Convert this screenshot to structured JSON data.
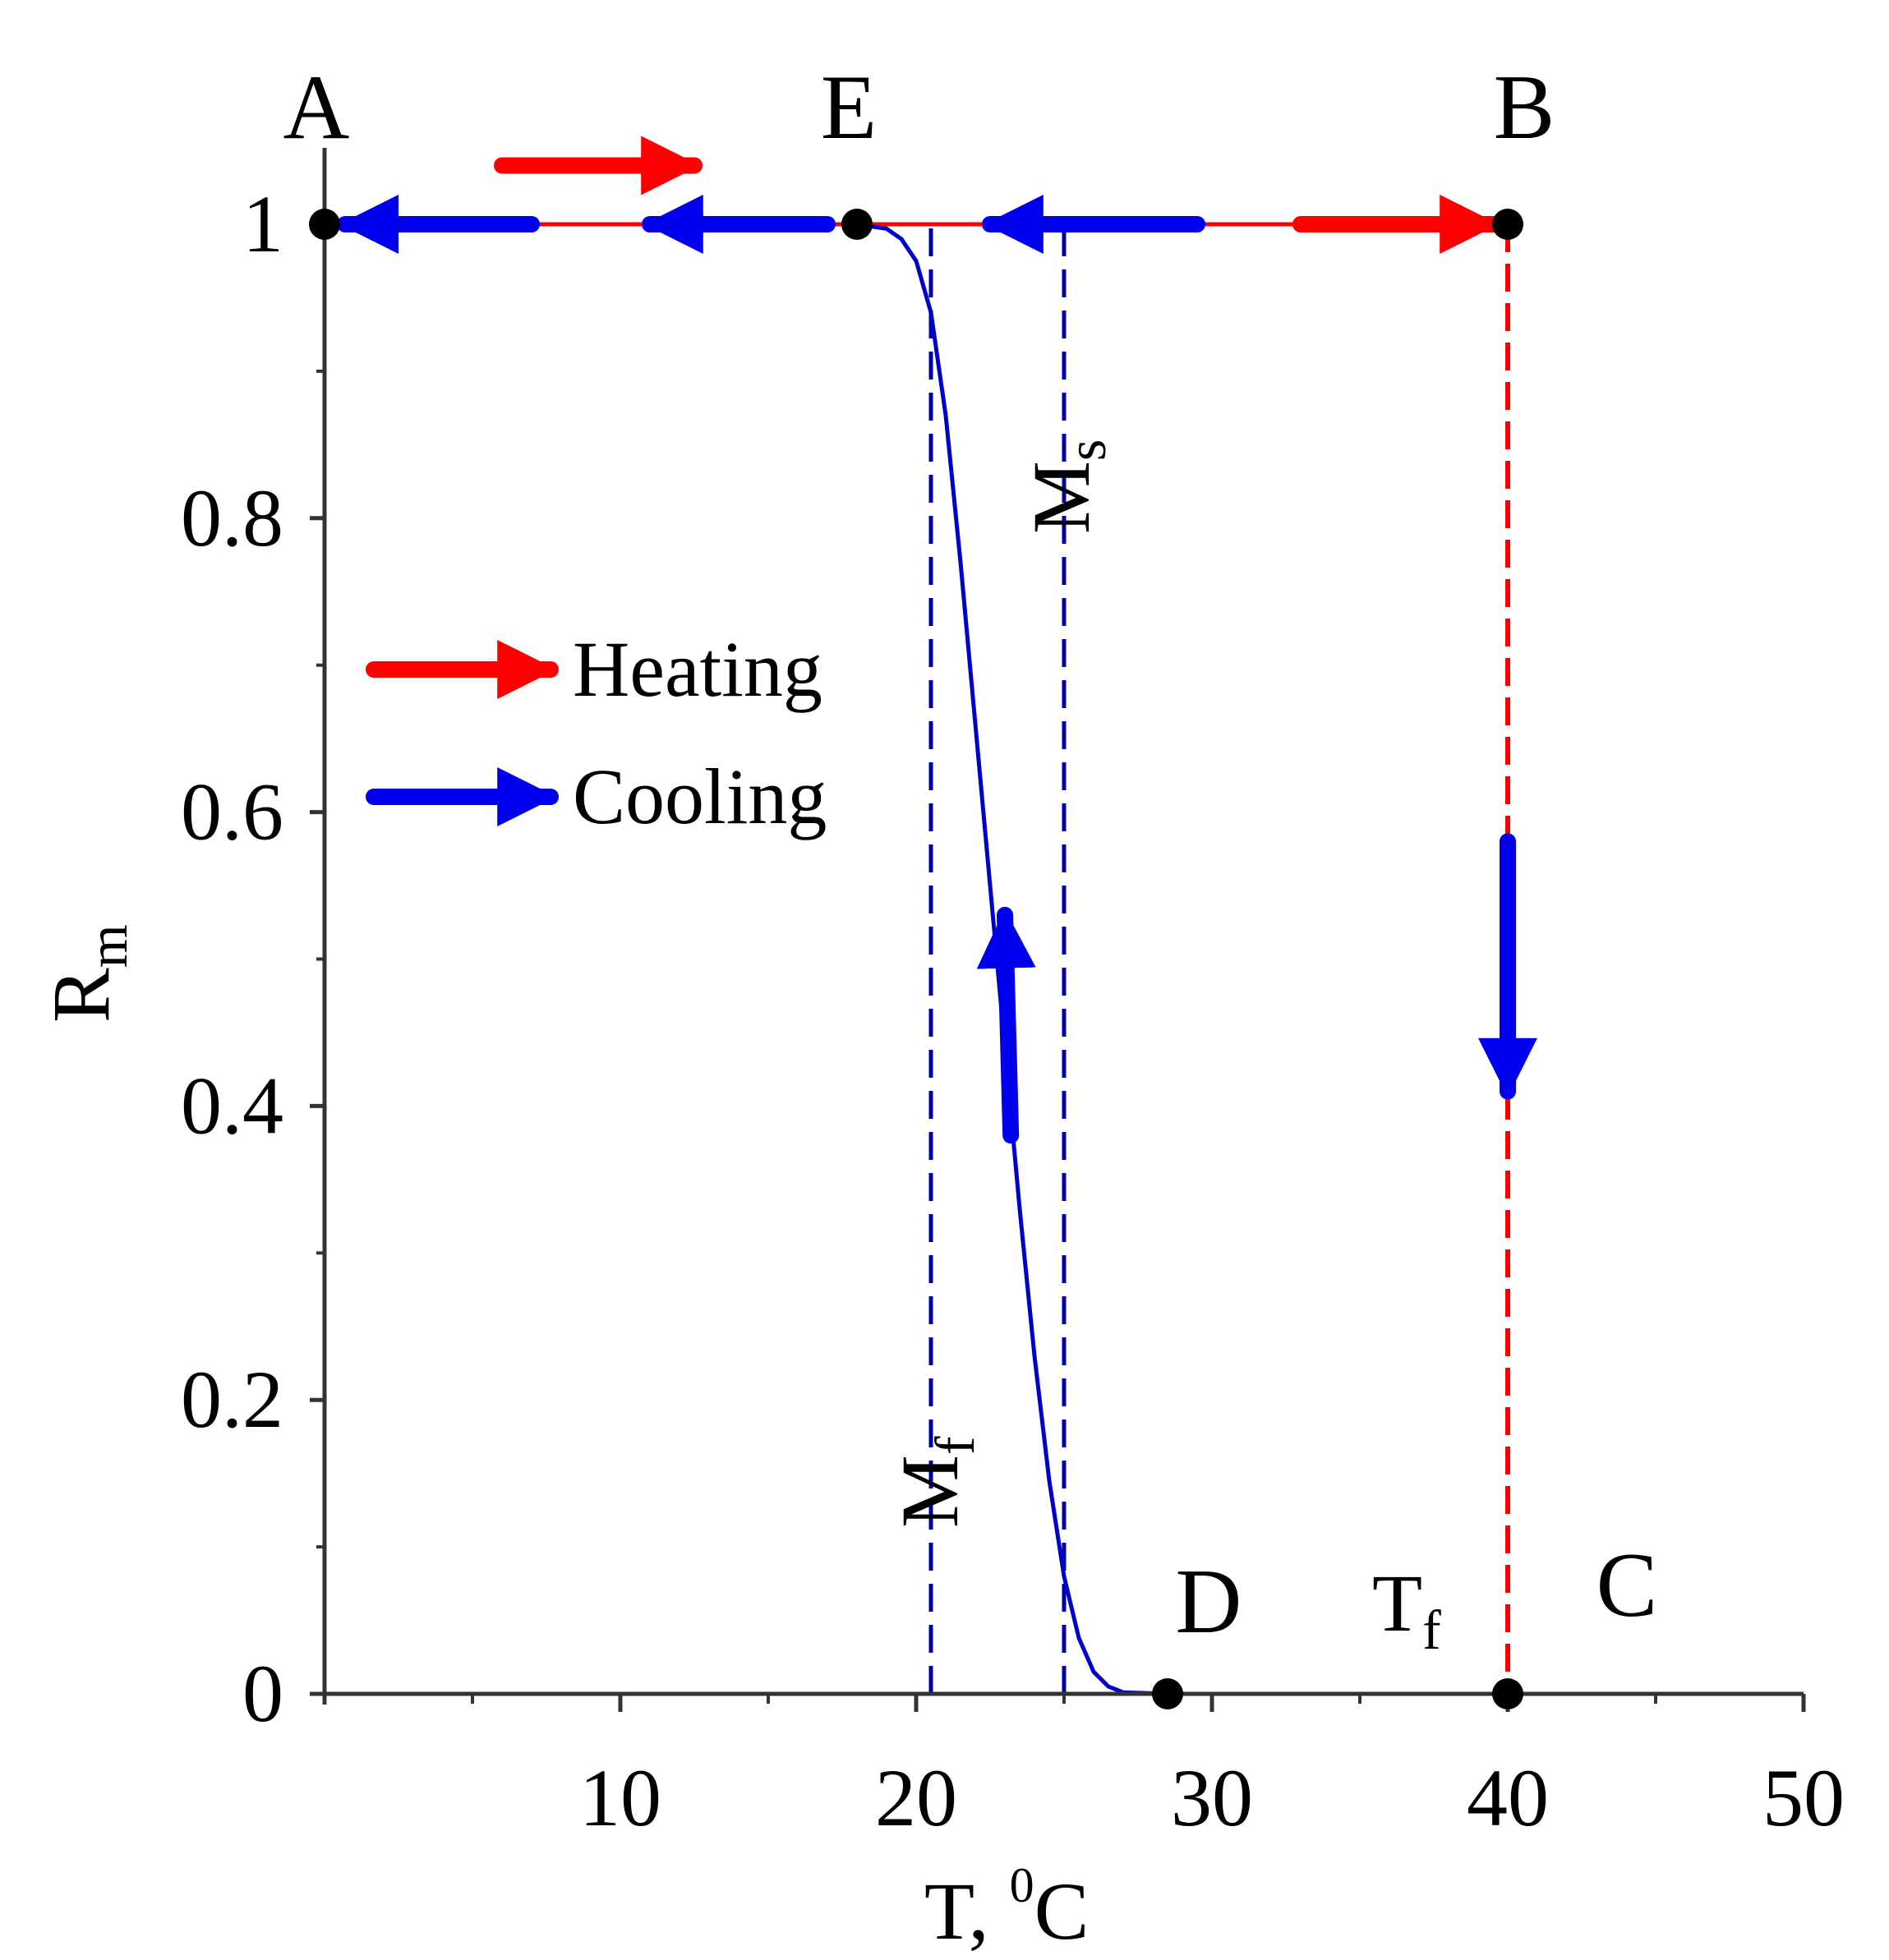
{
  "chart_data": {
    "type": "line",
    "title": "",
    "xlabel": {
      "main": "T, ",
      "sup": "0",
      "tail": "C"
    },
    "ylabel": {
      "main": "R",
      "sub": "m"
    },
    "xlim": [
      0,
      50
    ],
    "ylim": [
      0,
      1
    ],
    "x_ticks": [
      10,
      20,
      30,
      40,
      50
    ],
    "x_tick_labels": [
      "10",
      "20",
      "30",
      "40",
      "50"
    ],
    "y_ticks": [
      0,
      0.2,
      0.4,
      0.6,
      0.8,
      1
    ],
    "y_tick_labels": [
      "0",
      "0.2",
      "0.4",
      "0.6",
      "0.8",
      "1"
    ],
    "x_minor_ticks": [
      5,
      15,
      25,
      35,
      45
    ],
    "y_minor_ticks": [
      0.1,
      0.3,
      0.5,
      0.7,
      0.9
    ],
    "grid": false,
    "series": [
      {
        "name": "Heating",
        "color": "#ff0000",
        "segments": [
          {
            "x": [
              0,
              40
            ],
            "y": [
              1,
              1
            ],
            "style": "solid"
          },
          {
            "x": [
              40,
              40
            ],
            "y": [
              1,
              0
            ],
            "style": "dashed"
          }
        ]
      },
      {
        "name": "Cooling",
        "color": "#0000cc",
        "segments": [
          {
            "x": [
              18,
              19.0,
              19.5,
              20.0,
              20.5,
              21.0,
              21.5,
              22.0,
              22.5,
              23.0,
              23.5,
              24.0,
              24.5,
              25.0,
              25.5,
              26.0,
              26.5,
              27.0,
              28.5
            ],
            "y": [
              1,
              0.997,
              0.99,
              0.975,
              0.94,
              0.87,
              0.77,
              0.66,
              0.55,
              0.44,
              0.33,
              0.23,
              0.145,
              0.08,
              0.038,
              0.015,
              0.005,
              0.001,
              0
            ],
            "style": "solid"
          },
          {
            "x": [
              28.5,
              40
            ],
            "y": [
              0,
              0
            ],
            "style": "solid"
          }
        ]
      }
    ],
    "reference_lines": [
      {
        "x": 20.5,
        "label": {
          "main": "M",
          "sub": "f"
        },
        "color": "#0000aa",
        "style": "dashed"
      },
      {
        "x": 25,
        "label": {
          "main": "M",
          "sub": "s"
        },
        "color": "#0000aa",
        "style": "dashed"
      }
    ],
    "points": [
      {
        "label": "A",
        "x": 0,
        "y": 1
      },
      {
        "label": "E",
        "x": 18,
        "y": 1
      },
      {
        "label": "B",
        "x": 40,
        "y": 1
      },
      {
        "label": "D",
        "x": 28.5,
        "y": 0
      },
      {
        "label": "C",
        "x": 40,
        "y": 0
      }
    ],
    "annotations": [
      {
        "text": "T",
        "sub": "f",
        "x": 37,
        "y": 0.05
      }
    ],
    "arrows": [
      {
        "series": "Heating",
        "x_from": 6,
        "x_to": 12.5,
        "y": 1.04,
        "direction": "right"
      },
      {
        "series": "Heating",
        "x_from": 33,
        "x_to": 39.5,
        "y": 1,
        "direction": "right"
      },
      {
        "series": "Cooling",
        "x_from": 7,
        "x_to": 0.7,
        "y": 1,
        "direction": "left"
      },
      {
        "series": "Cooling",
        "x_from": 17,
        "x_to": 11,
        "y": 1,
        "direction": "left"
      },
      {
        "series": "Cooling",
        "x_from": 29.5,
        "x_to": 22.5,
        "y": 1,
        "direction": "left"
      },
      {
        "series": "Cooling",
        "x_from": 23.2,
        "x_to": 23.0,
        "y_from": 0.38,
        "y_to": 0.53,
        "direction": "up"
      },
      {
        "series": "Cooling",
        "x_from": 40,
        "x_to": 40,
        "y_from": 0.58,
        "y_to": 0.41,
        "direction": "down"
      }
    ],
    "legend": {
      "position": "left-middle",
      "entries": [
        {
          "label": "Heating",
          "color": "#ff0000"
        },
        {
          "label": "Cooling",
          "color": "#0000ee"
        }
      ]
    }
  }
}
